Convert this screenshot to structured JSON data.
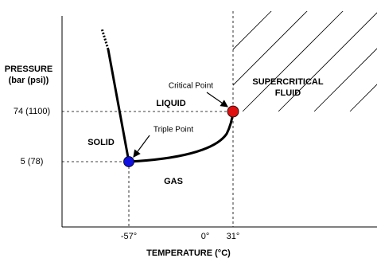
{
  "axes": {
    "y_title_1": "PRESSURE",
    "y_title_2": "(bar (psi))",
    "x_title": "TEMPERATURE (°C)",
    "y_ticks": [
      "74 (1100)",
      "5 (78)"
    ],
    "x_ticks": [
      "-57°",
      "0°",
      "31°"
    ]
  },
  "regions": {
    "solid": "SOLID",
    "liquid": "LIQUID",
    "gas": "GAS",
    "supercritical_1": "SUPERCRITICAL",
    "supercritical_2": "FLUID"
  },
  "points": {
    "critical": "Critical Point",
    "triple": "Triple Point"
  }
}
